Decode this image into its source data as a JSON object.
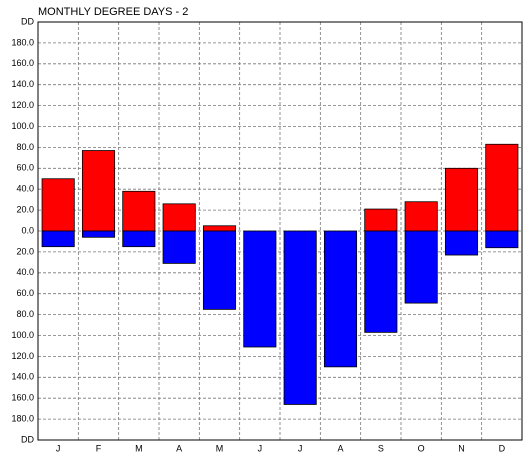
{
  "chart_data": {
    "type": "bar",
    "title": "MONTHLY DEGREE DAYS - 2",
    "categories": [
      "J",
      "F",
      "M",
      "A",
      "M",
      "J",
      "J",
      "A",
      "S",
      "O",
      "N",
      "D"
    ],
    "series": [
      {
        "color": "#ff0000",
        "values": [
          50,
          77,
          38,
          26,
          5,
          0,
          0,
          0,
          21,
          28,
          60,
          83
        ]
      },
      {
        "color": "#0000ff",
        "values": [
          -15,
          -6,
          -15,
          -31,
          -75,
          -111,
          -166,
          -130,
          -97,
          -69,
          -23,
          -16
        ]
      }
    ],
    "ylim": [
      -200,
      200
    ],
    "yticks": [
      {
        "value": 200,
        "label": "DD"
      },
      {
        "value": 180,
        "label": "180.0"
      },
      {
        "value": 160,
        "label": "160.0"
      },
      {
        "value": 140,
        "label": "140.0"
      },
      {
        "value": 120,
        "label": "120.0"
      },
      {
        "value": 100,
        "label": "100.0"
      },
      {
        "value": 80,
        "label": "80.0"
      },
      {
        "value": 60,
        "label": "60.0"
      },
      {
        "value": 40,
        "label": "40.0"
      },
      {
        "value": 20,
        "label": "20.0"
      },
      {
        "value": 0,
        "label": "0.0"
      },
      {
        "value": -20,
        "label": "20.0"
      },
      {
        "value": -40,
        "label": "40.0"
      },
      {
        "value": -60,
        "label": "60.0"
      },
      {
        "value": -80,
        "label": "80.0"
      },
      {
        "value": -100,
        "label": "100.0"
      },
      {
        "value": -120,
        "label": "120.0"
      },
      {
        "value": -140,
        "label": "140.0"
      },
      {
        "value": -160,
        "label": "160.0"
      },
      {
        "value": -180,
        "label": "180.0"
      },
      {
        "value": -200,
        "label": "DD"
      }
    ],
    "grid": true
  }
}
